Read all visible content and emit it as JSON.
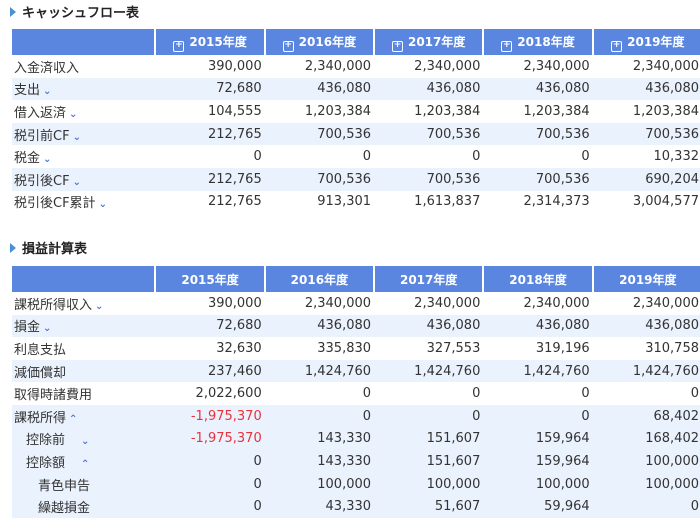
{
  "cashflow": {
    "title": "キャッシュフロー表",
    "header_icon": "calendar-plus-icon",
    "years": [
      "2015年度",
      "2016年度",
      "2017年度",
      "2018年度",
      "2019年度"
    ],
    "rows": [
      {
        "label": "入金済収入",
        "chev": "",
        "values": [
          "390,000",
          "2,340,000",
          "2,340,000",
          "2,340,000",
          "2,340,000"
        ]
      },
      {
        "label": "支出",
        "chev": "down",
        "values": [
          "72,680",
          "436,080",
          "436,080",
          "436,080",
          "436,080"
        ]
      },
      {
        "label": "借入返済",
        "chev": "down",
        "values": [
          "104,555",
          "1,203,384",
          "1,203,384",
          "1,203,384",
          "1,203,384"
        ]
      },
      {
        "label": "税引前CF",
        "chev": "down",
        "values": [
          "212,765",
          "700,536",
          "700,536",
          "700,536",
          "700,536"
        ]
      },
      {
        "label": "税金",
        "chev": "down",
        "values": [
          "0",
          "0",
          "0",
          "0",
          "10,332"
        ]
      },
      {
        "label": "税引後CF",
        "chev": "down",
        "values": [
          "212,765",
          "700,536",
          "700,536",
          "700,536",
          "690,204"
        ]
      },
      {
        "label": "税引後CF累計",
        "chev": "down",
        "values": [
          "212,765",
          "913,301",
          "1,613,837",
          "2,314,373",
          "3,004,577"
        ]
      }
    ]
  },
  "pl": {
    "title": "損益計算表",
    "years": [
      "2015年度",
      "2016年度",
      "2017年度",
      "2018年度",
      "2019年度"
    ],
    "rows": [
      {
        "label": "課税所得収入",
        "chev": "down",
        "indent": 0,
        "values": [
          "390,000",
          "2,340,000",
          "2,340,000",
          "2,340,000",
          "2,340,000"
        ]
      },
      {
        "label": "損金",
        "chev": "down",
        "indent": 0,
        "values": [
          "72,680",
          "436,080",
          "436,080",
          "436,080",
          "436,080"
        ]
      },
      {
        "label": "利息支払",
        "chev": "",
        "indent": 0,
        "values": [
          "32,630",
          "335,830",
          "327,553",
          "319,196",
          "310,758"
        ]
      },
      {
        "label": "減価償却",
        "chev": "",
        "indent": 0,
        "values": [
          "237,460",
          "1,424,760",
          "1,424,760",
          "1,424,760",
          "1,424,760"
        ]
      },
      {
        "label": "取得時諸費用",
        "chev": "",
        "indent": 0,
        "values": [
          "2,022,600",
          "0",
          "0",
          "0",
          "0"
        ]
      },
      {
        "label": "課税所得",
        "chev": "up",
        "indent": 0,
        "values": [
          "-1,975,370",
          "0",
          "0",
          "0",
          "68,402"
        ]
      },
      {
        "label": "控除前",
        "chev": "down",
        "indent": 1,
        "values": [
          "-1,975,370",
          "143,330",
          "151,607",
          "159,964",
          "168,402"
        ]
      },
      {
        "label": "控除額",
        "chev": "up",
        "indent": 1,
        "values": [
          "0",
          "143,330",
          "151,607",
          "159,964",
          "100,000"
        ]
      },
      {
        "label": "青色申告",
        "chev": "",
        "indent": 2,
        "values": [
          "0",
          "100,000",
          "100,000",
          "100,000",
          "100,000"
        ]
      },
      {
        "label": "繰越損金",
        "chev": "",
        "indent": 2,
        "values": [
          "0",
          "43,330",
          "51,607",
          "59,964",
          "0"
        ]
      }
    ]
  },
  "colors": {
    "header": "#5b86e0",
    "stripe": "#eaf2fd",
    "negative": "#e8323c"
  }
}
